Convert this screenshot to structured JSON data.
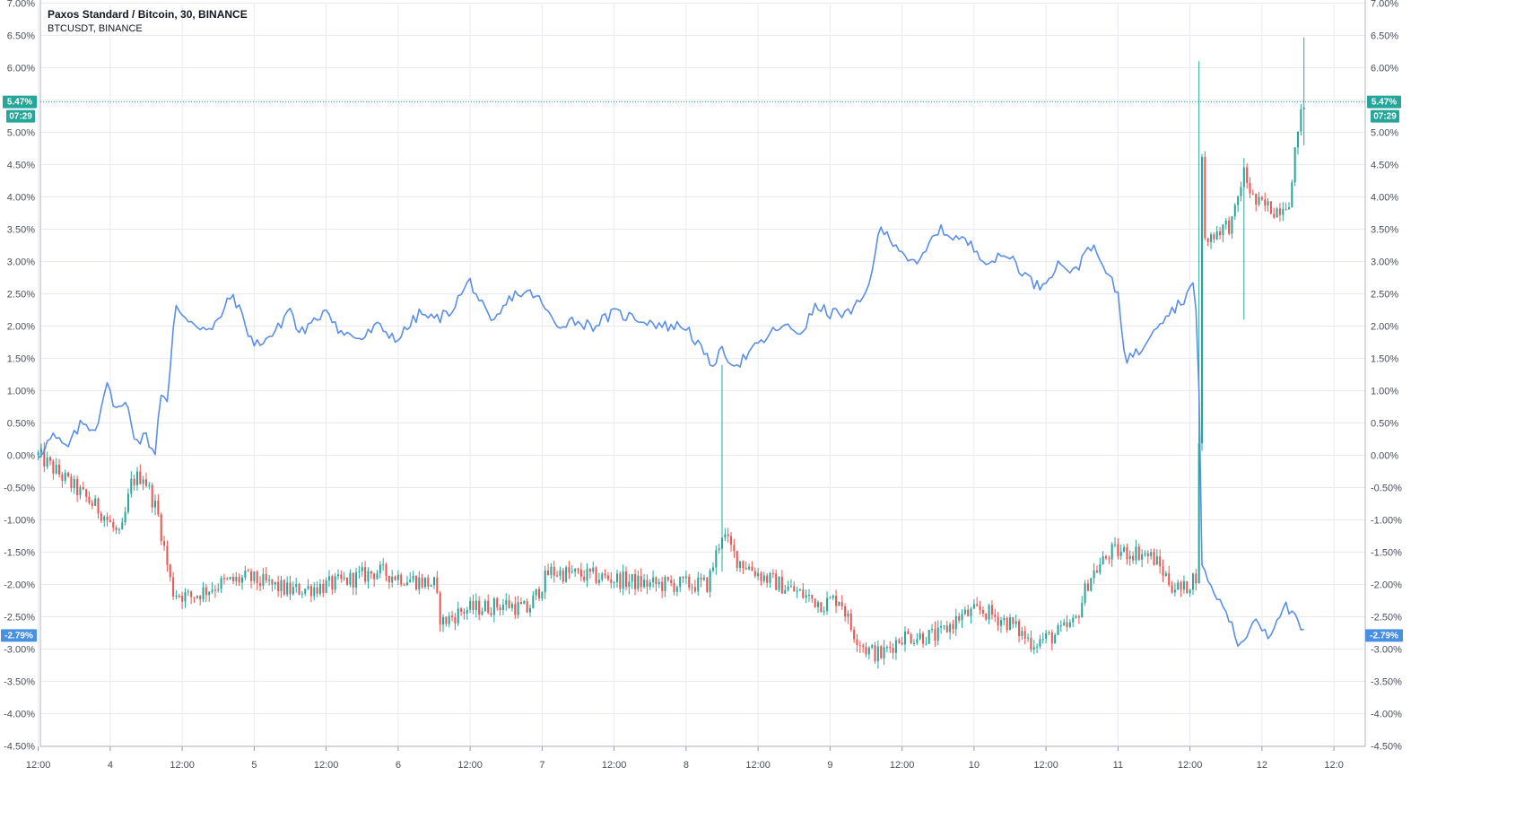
{
  "legend": {
    "main_symbol": "Paxos Standard / Bitcoin, 30, BINANCE",
    "compare_symbol": "BTCUSDT, BINANCE"
  },
  "colors": {
    "up": "#26a69a",
    "down": "#ef5350",
    "compare_line": "#5b8ee6",
    "grid": "#e7eaf0",
    "axis_text": "#4a4e59",
    "last_price_badge": "#26a69a",
    "compare_badge": "#4a90e2"
  },
  "badges": {
    "last_value": "5.47%",
    "countdown": "07:29",
    "compare_value": "-2.79%"
  },
  "chart_data": {
    "type": "candlestick",
    "y_unit": "percent change",
    "ylim": [
      -4.5,
      7.0
    ],
    "y_ticks": [
      "7.00%",
      "6.50%",
      "6.00%",
      "5.50%",
      "5.00%",
      "4.50%",
      "4.00%",
      "3.50%",
      "3.00%",
      "2.50%",
      "2.00%",
      "1.50%",
      "1.00%",
      "0.50%",
      "0.00%",
      "-0.50%",
      "-1.00%",
      "-1.50%",
      "-2.00%",
      "-2.50%",
      "-3.00%",
      "-3.50%",
      "-4.00%",
      "-4.50%"
    ],
    "x_ticks": [
      "12:00",
      "4",
      "12:00",
      "5",
      "12:00",
      "6",
      "12:00",
      "7",
      "12:00",
      "8",
      "12:00",
      "9",
      "12:00",
      "10",
      "12:00",
      "11",
      "12:00",
      "12",
      "12:0"
    ],
    "x_range_days": [
      3.25,
      12.5
    ],
    "grid": true,
    "series": [
      {
        "name": "Paxos Standard / Bitcoin, 30, BINANCE",
        "kind": "candles",
        "close_path": [
          [
            3.25,
            0.0
          ],
          [
            3.4,
            -0.3
          ],
          [
            3.55,
            -0.6
          ],
          [
            3.7,
            -0.9
          ],
          [
            3.82,
            -1.3
          ],
          [
            3.9,
            -0.4
          ],
          [
            3.98,
            -0.3
          ],
          [
            4.08,
            -0.9
          ],
          [
            4.18,
            -2.1
          ],
          [
            4.3,
            -2.2
          ],
          [
            4.5,
            -2.0
          ],
          [
            4.7,
            -1.9
          ],
          [
            5.0,
            -2.1
          ],
          [
            5.3,
            -2.0
          ],
          [
            5.6,
            -1.8
          ],
          [
            6.0,
            -2.0
          ],
          [
            6.05,
            -2.6
          ],
          [
            6.2,
            -2.4
          ],
          [
            6.5,
            -2.3
          ],
          [
            6.65,
            -2.4
          ],
          [
            6.8,
            -1.8
          ],
          [
            7.2,
            -1.9
          ],
          [
            7.5,
            -2.0
          ],
          [
            7.9,
            -2.0
          ],
          [
            8.0,
            -1.2
          ],
          [
            8.1,
            -1.6
          ],
          [
            8.3,
            -1.9
          ],
          [
            8.5,
            -2.1
          ],
          [
            8.7,
            -2.3
          ],
          [
            8.82,
            -2.2
          ],
          [
            8.9,
            -2.7
          ],
          [
            9.0,
            -3.0
          ],
          [
            9.1,
            -3.1
          ],
          [
            9.25,
            -2.8
          ],
          [
            9.5,
            -2.8
          ],
          [
            9.65,
            -2.5
          ],
          [
            9.8,
            -2.4
          ],
          [
            10.0,
            -2.6
          ],
          [
            10.15,
            -2.9
          ],
          [
            10.3,
            -2.8
          ],
          [
            10.45,
            -2.6
          ],
          [
            10.55,
            -1.9
          ],
          [
            10.7,
            -1.5
          ],
          [
            10.9,
            -1.5
          ],
          [
            11.0,
            -1.6
          ],
          [
            11.12,
            -2.0
          ],
          [
            11.2,
            -2.1
          ],
          [
            11.31,
            -1.8
          ],
          [
            11.32,
            5.8
          ],
          [
            11.35,
            3.3
          ],
          [
            11.45,
            3.5
          ],
          [
            11.55,
            3.6
          ],
          [
            11.62,
            4.4
          ],
          [
            11.7,
            3.9
          ],
          [
            11.85,
            3.8
          ],
          [
            11.95,
            4.0
          ],
          [
            12.0,
            5.1
          ],
          [
            12.05,
            5.47
          ]
        ],
        "notable_wicks": [
          {
            "day": 8.0,
            "high": 1.4,
            "low": -1.8
          },
          {
            "day": 11.31,
            "high": 6.1,
            "low": -1.0
          },
          {
            "day": 11.62,
            "high": 4.6,
            "low": 2.1
          },
          {
            "day": 12.04,
            "high": 6.47,
            "low": 4.8
          }
        ]
      },
      {
        "name": "BTCUSDT, BINANCE",
        "kind": "line",
        "points": [
          [
            3.25,
            0.0
          ],
          [
            3.35,
            0.3
          ],
          [
            3.45,
            0.1
          ],
          [
            3.55,
            0.5
          ],
          [
            3.65,
            0.4
          ],
          [
            3.72,
            1.1
          ],
          [
            3.8,
            0.7
          ],
          [
            3.87,
            0.8
          ],
          [
            3.93,
            0.2
          ],
          [
            4.0,
            0.3
          ],
          [
            4.06,
            0.0
          ],
          [
            4.1,
            1.0
          ],
          [
            4.15,
            0.8
          ],
          [
            4.2,
            2.3
          ],
          [
            4.3,
            2.1
          ],
          [
            4.45,
            1.9
          ],
          [
            4.6,
            2.5
          ],
          [
            4.75,
            1.7
          ],
          [
            4.9,
            1.9
          ],
          [
            5.0,
            2.3
          ],
          [
            5.05,
            1.9
          ],
          [
            5.15,
            2.0
          ],
          [
            5.25,
            2.3
          ],
          [
            5.35,
            1.9
          ],
          [
            5.5,
            1.8
          ],
          [
            5.6,
            2.0
          ],
          [
            5.75,
            1.8
          ],
          [
            5.9,
            2.2
          ],
          [
            6.0,
            2.1
          ],
          [
            6.1,
            2.2
          ],
          [
            6.25,
            2.7
          ],
          [
            6.4,
            2.0
          ],
          [
            6.55,
            2.5
          ],
          [
            6.7,
            2.5
          ],
          [
            6.85,
            2.0
          ],
          [
            6.95,
            2.1
          ],
          [
            7.1,
            2.0
          ],
          [
            7.25,
            2.2
          ],
          [
            7.45,
            2.1
          ],
          [
            7.6,
            2.0
          ],
          [
            7.75,
            2.0
          ],
          [
            7.92,
            1.4
          ],
          [
            8.0,
            1.6
          ],
          [
            8.1,
            1.4
          ],
          [
            8.25,
            1.7
          ],
          [
            8.4,
            2.0
          ],
          [
            8.55,
            1.9
          ],
          [
            8.65,
            2.3
          ],
          [
            8.75,
            2.2
          ],
          [
            8.9,
            2.2
          ],
          [
            9.0,
            2.5
          ],
          [
            9.1,
            3.5
          ],
          [
            9.2,
            3.3
          ],
          [
            9.35,
            2.9
          ],
          [
            9.5,
            3.5
          ],
          [
            9.7,
            3.3
          ],
          [
            9.85,
            3.0
          ],
          [
            10.0,
            3.1
          ],
          [
            10.1,
            2.8
          ],
          [
            10.2,
            2.6
          ],
          [
            10.35,
            3.0
          ],
          [
            10.45,
            2.8
          ],
          [
            10.55,
            3.3
          ],
          [
            10.65,
            2.9
          ],
          [
            10.75,
            2.5
          ],
          [
            10.8,
            1.5
          ],
          [
            10.9,
            1.6
          ],
          [
            11.0,
            2.0
          ],
          [
            11.1,
            2.2
          ],
          [
            11.2,
            2.4
          ],
          [
            11.28,
            2.7
          ],
          [
            11.31,
            1.5
          ],
          [
            11.32,
            -0.9
          ],
          [
            11.33,
            -1.6
          ],
          [
            11.4,
            -2.1
          ],
          [
            11.5,
            -2.4
          ],
          [
            11.6,
            -3.0
          ],
          [
            11.7,
            -2.5
          ],
          [
            11.8,
            -2.8
          ],
          [
            11.9,
            -2.3
          ],
          [
            12.0,
            -2.6
          ],
          [
            12.05,
            -2.79
          ]
        ]
      }
    ]
  }
}
